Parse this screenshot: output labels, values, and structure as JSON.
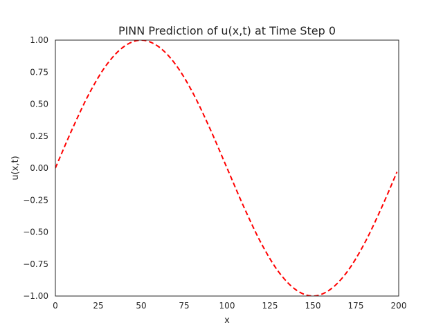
{
  "chart_data": {
    "type": "line",
    "title": "PINN Prediction of u(x,t) at Time Step 0",
    "xlabel": "x",
    "ylabel": "u(x,t)",
    "xlim": [
      0,
      200
    ],
    "ylim": [
      -1.0,
      1.0
    ],
    "grid": false,
    "x_ticks": [
      0,
      25,
      50,
      75,
      100,
      125,
      150,
      175,
      200
    ],
    "y_ticks": [
      -1.0,
      -0.75,
      -0.5,
      -0.25,
      0.0,
      0.25,
      0.5,
      0.75,
      1.0
    ],
    "x_tick_labels": [
      "0",
      "25",
      "50",
      "75",
      "100",
      "125",
      "150",
      "175",
      "200"
    ],
    "y_tick_labels": [
      "−1.00",
      "−0.75",
      "−0.50",
      "−0.25",
      "0.00",
      "0.25",
      "0.50",
      "0.75",
      "1.00"
    ],
    "series": [
      {
        "color": "#ff0000",
        "style": "dashed",
        "x": [
          0,
          10,
          20,
          30,
          40,
          50,
          60,
          70,
          80,
          90,
          100,
          110,
          120,
          130,
          140,
          150,
          160,
          170,
          180,
          190,
          199
        ],
        "values": [
          0.0,
          0.31,
          0.59,
          0.81,
          0.95,
          1.0,
          0.95,
          0.81,
          0.59,
          0.31,
          0.0,
          -0.31,
          -0.59,
          -0.81,
          -0.95,
          -1.0,
          -0.95,
          -0.81,
          -0.59,
          -0.31,
          -0.03
        ]
      }
    ]
  }
}
